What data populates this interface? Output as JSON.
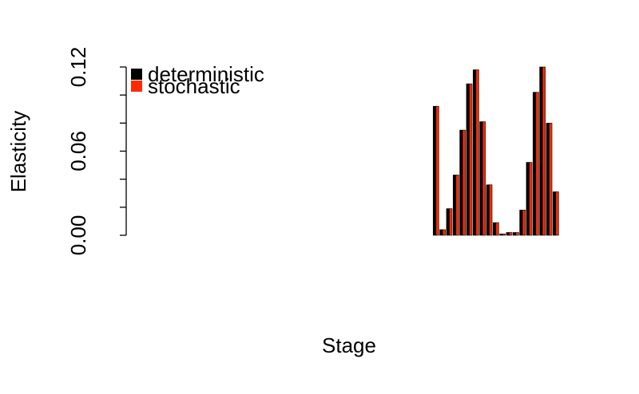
{
  "chart_data": {
    "type": "bar",
    "xlabel": "Stage",
    "ylabel": "Elasticity",
    "categories": [
      null,
      null,
      null,
      null,
      null,
      null,
      null,
      null,
      null,
      null,
      null,
      null,
      null,
      null,
      null,
      null,
      null,
      null,
      null,
      null,
      null,
      null,
      null,
      null,
      null,
      null,
      null,
      null,
      null,
      null,
      null,
      null,
      null,
      null,
      null,
      null,
      null,
      null,
      null,
      null,
      null,
      null,
      null,
      null,
      null,
      null,
      null,
      null,
      null,
      null,
      null,
      null,
      null,
      null,
      null,
      null,
      null,
      null,
      null,
      null,
      null,
      null,
      null
    ],
    "series": [
      {
        "name": "deterministic",
        "color": "#000000",
        "values": [
          0,
          0,
          0,
          0,
          0,
          0,
          0,
          0,
          0,
          0,
          0,
          0,
          0,
          0,
          0,
          0,
          0,
          0,
          0,
          0,
          0,
          0,
          0,
          0,
          0,
          0,
          0,
          0,
          0,
          0,
          0,
          0,
          0,
          0,
          0,
          0,
          0,
          0,
          0,
          0,
          0,
          0,
          0,
          0,
          0.092,
          0.004,
          0.019,
          0.043,
          0.075,
          0.108,
          0.118,
          0.081,
          0.036,
          0.009,
          0.001,
          0.002,
          0.002,
          0.018,
          0.052,
          0.102,
          0.12,
          0.08,
          0.031
        ]
      },
      {
        "name": "stochastic",
        "color": "#ff2a00",
        "values": [
          0,
          0,
          0,
          0,
          0,
          0,
          0,
          0,
          0,
          0,
          0,
          0,
          0,
          0,
          0,
          0,
          0,
          0,
          0,
          0,
          0,
          0,
          0,
          0,
          0,
          0,
          0,
          0,
          0,
          0,
          0,
          0,
          0,
          0,
          0,
          0,
          0,
          0,
          0,
          0,
          0,
          0,
          0,
          0,
          0.092,
          0.004,
          0.019,
          0.043,
          0.075,
          0.108,
          0.118,
          0.081,
          0.036,
          0.009,
          0.001,
          0.002,
          0.002,
          0.018,
          0.052,
          0.102,
          0.12,
          0.08,
          0.031
        ]
      }
    ],
    "ylim": [
      0,
      0.12
    ],
    "yticks": [
      {
        "value": 0,
        "label": "0.00"
      },
      {
        "value": 0.06,
        "label": "0.06"
      },
      {
        "value": 0.12,
        "label": "0.12"
      }
    ],
    "yminor_ticks": [
      0.02,
      0.04,
      0.08,
      0.1
    ],
    "legend": "top-left"
  }
}
